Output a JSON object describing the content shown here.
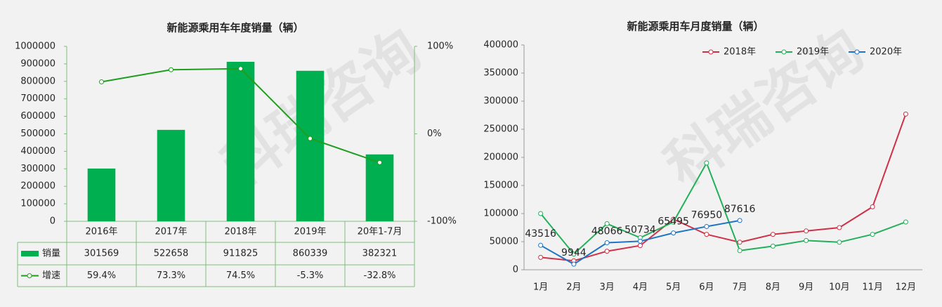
{
  "watermark": "科瑞咨询",
  "chart_data": [
    {
      "type": "bar",
      "title": "新能源乘用车年度销量（辆）",
      "categories": [
        "2016年",
        "2017年",
        "2018年",
        "2019年",
        "20年1-7月"
      ],
      "series": [
        {
          "name": "销量",
          "color": "#00b050",
          "values": [
            301569,
            522658,
            911825,
            860339,
            382321
          ]
        },
        {
          "name": "增速",
          "color": "#1f9e1f",
          "axis": "y2",
          "values": [
            59.4,
            73.3,
            74.5,
            -5.3,
            -32.8
          ],
          "value_labels": [
            "59.4%",
            "73.3%",
            "74.5%",
            "-5.3%",
            "-32.8%"
          ]
        }
      ],
      "ylim": [
        0,
        1000000
      ],
      "yticks": [
        0,
        100000,
        200000,
        300000,
        400000,
        500000,
        600000,
        700000,
        800000,
        900000,
        1000000
      ],
      "y2lim": [
        -100,
        100
      ],
      "y2ticks": [
        {
          "value": -100,
          "label": "-100%"
        },
        {
          "value": 0,
          "label": "0%"
        },
        {
          "value": 100,
          "label": "100%"
        }
      ]
    },
    {
      "type": "line",
      "title": "新能源乘用车月度销量（辆）",
      "categories": [
        "1月",
        "2月",
        "3月",
        "4月",
        "5月",
        "6月",
        "7月",
        "8月",
        "9月",
        "10月",
        "11月",
        "12月"
      ],
      "series": [
        {
          "name": "2018年",
          "color": "#cf3148",
          "values": [
            22000,
            16000,
            33000,
            43000,
            90000,
            63000,
            49000,
            63000,
            69000,
            75000,
            112000,
            277000
          ]
        },
        {
          "name": "2019年",
          "color": "#22b05a",
          "values": [
            100000,
            28000,
            82000,
            57000,
            85000,
            190000,
            34000,
            42000,
            52000,
            49000,
            63000,
            85000
          ]
        },
        {
          "name": "2020年",
          "color": "#1f74c4",
          "values": [
            43516,
            9944,
            48066,
            50734,
            65495,
            76950,
            87616,
            null,
            null,
            null,
            null,
            null
          ],
          "data_labels": true
        }
      ],
      "ylim": [
        0,
        400000
      ],
      "yticks": [
        0,
        50000,
        100000,
        150000,
        200000,
        250000,
        300000,
        350000,
        400000
      ],
      "legend": "top-right"
    }
  ]
}
